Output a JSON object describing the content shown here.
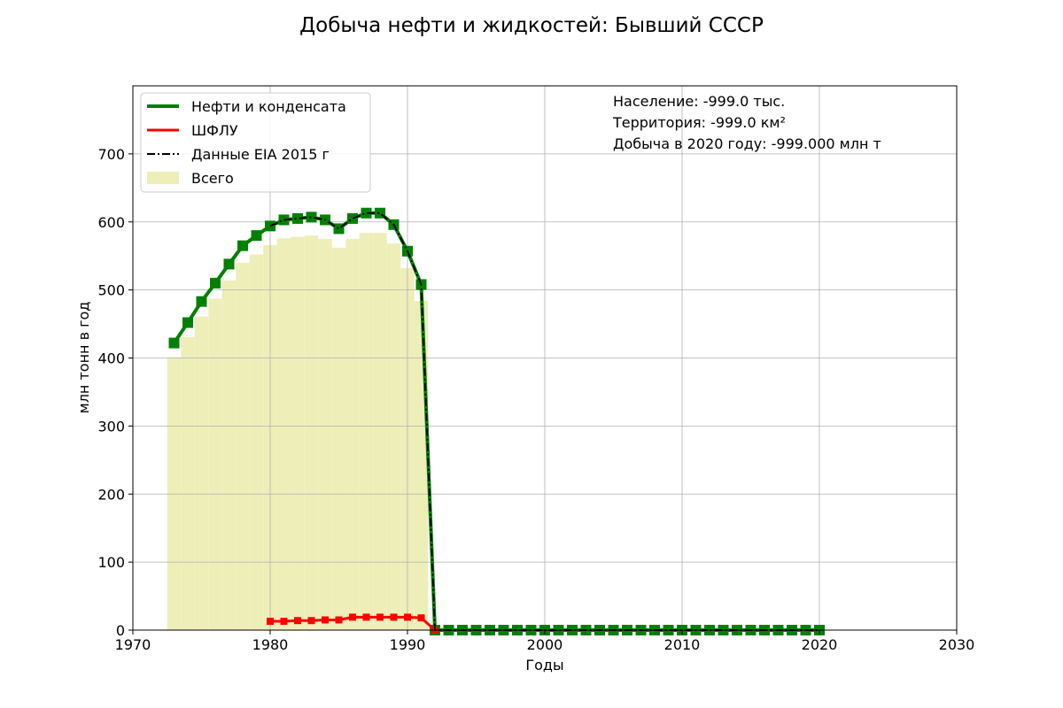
{
  "chart_data": {
    "type": "line",
    "title": "Добыча нефти и жидкостей: Бывший СССР",
    "xlabel": "Годы",
    "ylabel": "млн тонн в год",
    "xlim": [
      1970,
      2030
    ],
    "ylim": [
      0,
      800
    ],
    "x_ticks": [
      1970,
      1980,
      1990,
      2000,
      2010,
      2020,
      2030
    ],
    "y_ticks": [
      0,
      100,
      200,
      300,
      400,
      500,
      600,
      700
    ],
    "grid": true,
    "legend_position": "top-left",
    "info_lines": [
      "Население: -999.0 тыс.",
      "Территория: -999.0 км²",
      "Добыча в 2020 году: -999.000 млн т"
    ],
    "series": [
      {
        "name": "Нефти и конденсата",
        "kind": "line-marker",
        "color": "#008000",
        "x": [
          1973,
          1974,
          1975,
          1976,
          1977,
          1978,
          1979,
          1980,
          1981,
          1982,
          1983,
          1984,
          1985,
          1986,
          1987,
          1988,
          1989,
          1990,
          1991,
          1992,
          1993,
          1994,
          1995,
          1996,
          1997,
          1998,
          1999,
          2000,
          2001,
          2002,
          2003,
          2004,
          2005,
          2006,
          2007,
          2008,
          2009,
          2010,
          2011,
          2012,
          2013,
          2014,
          2015,
          2016,
          2017,
          2018,
          2019,
          2020
        ],
        "values": [
          422,
          452,
          483,
          510,
          538,
          565,
          580,
          594,
          603,
          605,
          607,
          603,
          590,
          605,
          613,
          613,
          596,
          557,
          508,
          0,
          0,
          0,
          0,
          0,
          0,
          0,
          0,
          0,
          0,
          0,
          0,
          0,
          0,
          0,
          0,
          0,
          0,
          0,
          0,
          0,
          0,
          0,
          0,
          0,
          0,
          0,
          0,
          0
        ]
      },
      {
        "name": "ШФЛУ",
        "kind": "line-marker",
        "color": "#ff0000",
        "x": [
          1980,
          1981,
          1982,
          1983,
          1984,
          1985,
          1986,
          1987,
          1988,
          1989,
          1990,
          1991,
          1992
        ],
        "values": [
          13,
          13,
          14,
          14,
          15,
          15,
          19,
          19,
          19,
          19,
          19,
          18,
          0
        ]
      },
      {
        "name": "Данные EIA 2015 г",
        "kind": "dashdot",
        "color": "#000000",
        "x": [
          1980,
          1981,
          1982,
          1983,
          1984,
          1985,
          1986,
          1987,
          1988,
          1989,
          1990,
          1991,
          1992,
          2020
        ],
        "values": [
          594,
          603,
          605,
          607,
          603,
          590,
          605,
          613,
          613,
          596,
          557,
          508,
          0,
          0
        ]
      },
      {
        "name": "Всего",
        "kind": "bar",
        "color": "#eeeeb9",
        "x": [
          1973,
          1974,
          1975,
          1976,
          1977,
          1978,
          1979,
          1980,
          1981,
          1982,
          1983,
          1984,
          1985,
          1986,
          1987,
          1988,
          1989,
          1990,
          1991
        ],
        "values": [
          401,
          431,
          461,
          487,
          514,
          540,
          552,
          566,
          576,
          578,
          580,
          575,
          562,
          575,
          584,
          584,
          568,
          532,
          484
        ]
      }
    ]
  }
}
